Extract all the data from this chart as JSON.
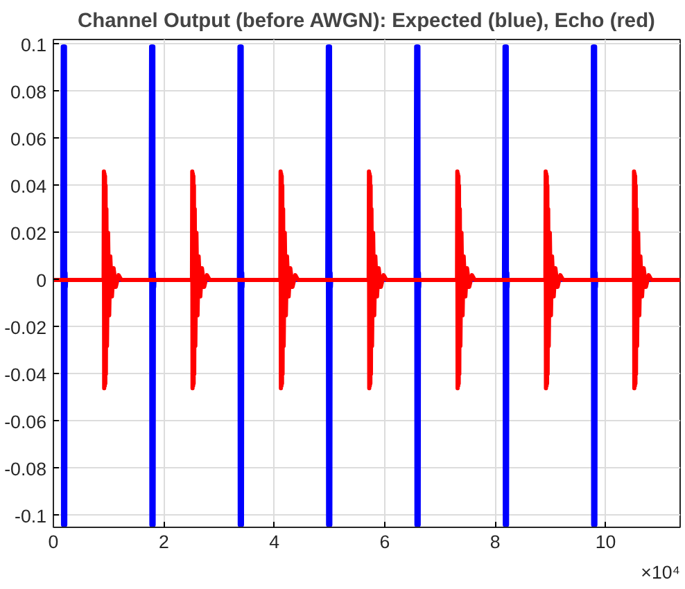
{
  "chart_data": {
    "type": "line",
    "title": "Channel Output (before AWGN): Expected (blue), Echo (red)",
    "xlim": [
      0,
      11.35
    ],
    "ylim": [
      -0.105,
      0.102
    ],
    "xticks": [
      0,
      2,
      4,
      6,
      8,
      10
    ],
    "yticks": [
      -0.1,
      -0.08,
      -0.06,
      -0.04,
      -0.02,
      0,
      0.02,
      0.04,
      0.06,
      0.08,
      0.1
    ],
    "grid": true,
    "line_style": "solid",
    "annotations": [
      "×10⁴"
    ],
    "series": [
      {
        "color": "#0000ff",
        "x": [
          0,
          0.16,
          0.17,
          0.175,
          0.18,
          0.185,
          0.19,
          0.195,
          0.2,
          0.205,
          0.21,
          0.215,
          0.22,
          0.225,
          0.23,
          1.76,
          1.77,
          1.775,
          1.78,
          1.785,
          1.79,
          1.795,
          1.8,
          1.805,
          1.81,
          1.815,
          1.82,
          1.825,
          1.83,
          3.36,
          3.37,
          3.375,
          3.38,
          3.385,
          3.39,
          3.395,
          3.4,
          3.405,
          3.41,
          3.415,
          3.42,
          3.425,
          3.43,
          4.96,
          4.97,
          4.975,
          4.98,
          4.985,
          4.99,
          4.995,
          5.0,
          5.005,
          5.01,
          5.015,
          5.02,
          5.025,
          5.03,
          6.56,
          6.57,
          6.575,
          6.58,
          6.585,
          6.59,
          6.595,
          6.6,
          6.605,
          6.61,
          6.615,
          6.62,
          6.625,
          6.63,
          8.16,
          8.17,
          8.175,
          8.18,
          8.185,
          8.19,
          8.195,
          8.2,
          8.205,
          8.21,
          8.215,
          8.22,
          8.225,
          8.23,
          9.76,
          9.77,
          9.775,
          9.78,
          9.785,
          9.79,
          9.795,
          9.8,
          9.805,
          9.81,
          9.815,
          9.82,
          9.825,
          9.83,
          11.35
        ],
        "values": [
          0,
          0,
          0.099,
          -0.104,
          0.099,
          -0.104,
          0.099,
          -0.104,
          0.099,
          -0.104,
          0.099,
          -0.104,
          0.003,
          -0.003,
          0,
          0,
          0.099,
          -0.104,
          0.099,
          -0.104,
          0.099,
          -0.104,
          0.099,
          -0.104,
          0.099,
          -0.104,
          0.003,
          -0.003,
          0,
          0,
          0.099,
          -0.104,
          0.099,
          -0.104,
          0.099,
          -0.104,
          0.099,
          -0.104,
          0.099,
          -0.104,
          0.003,
          -0.003,
          0,
          0,
          0.099,
          -0.104,
          0.099,
          -0.104,
          0.099,
          -0.104,
          0.099,
          -0.104,
          0.099,
          -0.104,
          0.003,
          -0.003,
          0,
          0,
          0.099,
          -0.104,
          0.099,
          -0.104,
          0.099,
          -0.104,
          0.099,
          -0.104,
          0.099,
          -0.104,
          0.003,
          -0.003,
          0,
          0,
          0.099,
          -0.104,
          0.099,
          -0.104,
          0.099,
          -0.104,
          0.099,
          -0.104,
          0.099,
          -0.104,
          0.003,
          -0.003,
          0,
          0,
          0.099,
          -0.104,
          0.099,
          -0.104,
          0.099,
          -0.104,
          0.099,
          -0.104,
          0.099,
          -0.104,
          0.003,
          -0.003,
          0,
          0
        ]
      },
      {
        "color": "#ff0000",
        "x": [
          0,
          0.91,
          0.915,
          0.92,
          0.925,
          0.93,
          0.935,
          0.94,
          0.945,
          0.95,
          0.96,
          0.97,
          0.99,
          1.01,
          1.03,
          1.06,
          1.09,
          1.13,
          1.18,
          1.23,
          2.51,
          2.515,
          2.52,
          2.525,
          2.53,
          2.535,
          2.54,
          2.545,
          2.55,
          2.56,
          2.57,
          2.59,
          2.61,
          2.63,
          2.66,
          2.69,
          2.73,
          2.78,
          2.83,
          4.11,
          4.115,
          4.12,
          4.125,
          4.13,
          4.135,
          4.14,
          4.145,
          4.15,
          4.16,
          4.17,
          4.19,
          4.21,
          4.23,
          4.26,
          4.29,
          4.33,
          4.38,
          4.43,
          5.71,
          5.715,
          5.72,
          5.725,
          5.73,
          5.735,
          5.74,
          5.745,
          5.75,
          5.76,
          5.77,
          5.79,
          5.81,
          5.83,
          5.86,
          5.89,
          5.93,
          5.98,
          6.03,
          7.31,
          7.315,
          7.32,
          7.325,
          7.33,
          7.335,
          7.34,
          7.345,
          7.35,
          7.36,
          7.37,
          7.39,
          7.41,
          7.43,
          7.46,
          7.49,
          7.53,
          7.58,
          7.63,
          8.91,
          8.915,
          8.92,
          8.925,
          8.93,
          8.935,
          8.94,
          8.945,
          8.95,
          8.96,
          8.97,
          8.99,
          9.01,
          9.03,
          9.06,
          9.09,
          9.13,
          9.18,
          9.23,
          10.51,
          10.515,
          10.52,
          10.525,
          10.53,
          10.535,
          10.54,
          10.545,
          10.55,
          10.56,
          10.57,
          10.59,
          10.61,
          10.63,
          10.66,
          10.69,
          10.73,
          10.78,
          10.83,
          11.35
        ],
        "values": [
          0,
          0,
          0.046,
          -0.046,
          0.045,
          -0.045,
          0.044,
          -0.044,
          0.04,
          -0.04,
          0.03,
          -0.028,
          0.02,
          -0.015,
          0.01,
          -0.007,
          0.005,
          -0.003,
          0.002,
          0,
          0,
          0.046,
          -0.046,
          0.045,
          -0.045,
          0.044,
          -0.044,
          0.04,
          -0.04,
          0.03,
          -0.028,
          0.02,
          -0.015,
          0.01,
          -0.007,
          0.005,
          -0.003,
          0.002,
          0,
          0,
          0.046,
          -0.046,
          0.045,
          -0.045,
          0.044,
          -0.044,
          0.04,
          -0.04,
          0.03,
          -0.028,
          0.02,
          -0.015,
          0.01,
          -0.007,
          0.005,
          -0.003,
          0.002,
          0,
          0,
          0.046,
          -0.046,
          0.045,
          -0.045,
          0.044,
          -0.044,
          0.04,
          -0.04,
          0.03,
          -0.028,
          0.02,
          -0.015,
          0.01,
          -0.007,
          0.005,
          -0.003,
          0.002,
          0,
          0,
          0.046,
          -0.046,
          0.045,
          -0.045,
          0.044,
          -0.044,
          0.04,
          -0.04,
          0.03,
          -0.028,
          0.02,
          -0.015,
          0.01,
          -0.007,
          0.005,
          -0.003,
          0.002,
          0,
          0,
          0.046,
          -0.046,
          0.045,
          -0.045,
          0.044,
          -0.044,
          0.04,
          -0.04,
          0.03,
          -0.028,
          0.02,
          -0.015,
          0.01,
          -0.007,
          0.005,
          -0.003,
          0.002,
          0,
          0,
          0.046,
          -0.046,
          0.045,
          -0.045,
          0.044,
          -0.044,
          0.04,
          -0.04,
          0.03,
          -0.028,
          0.02,
          -0.015,
          0.01,
          -0.007,
          0.005,
          -0.003,
          0.002,
          0,
          0
        ]
      }
    ]
  }
}
